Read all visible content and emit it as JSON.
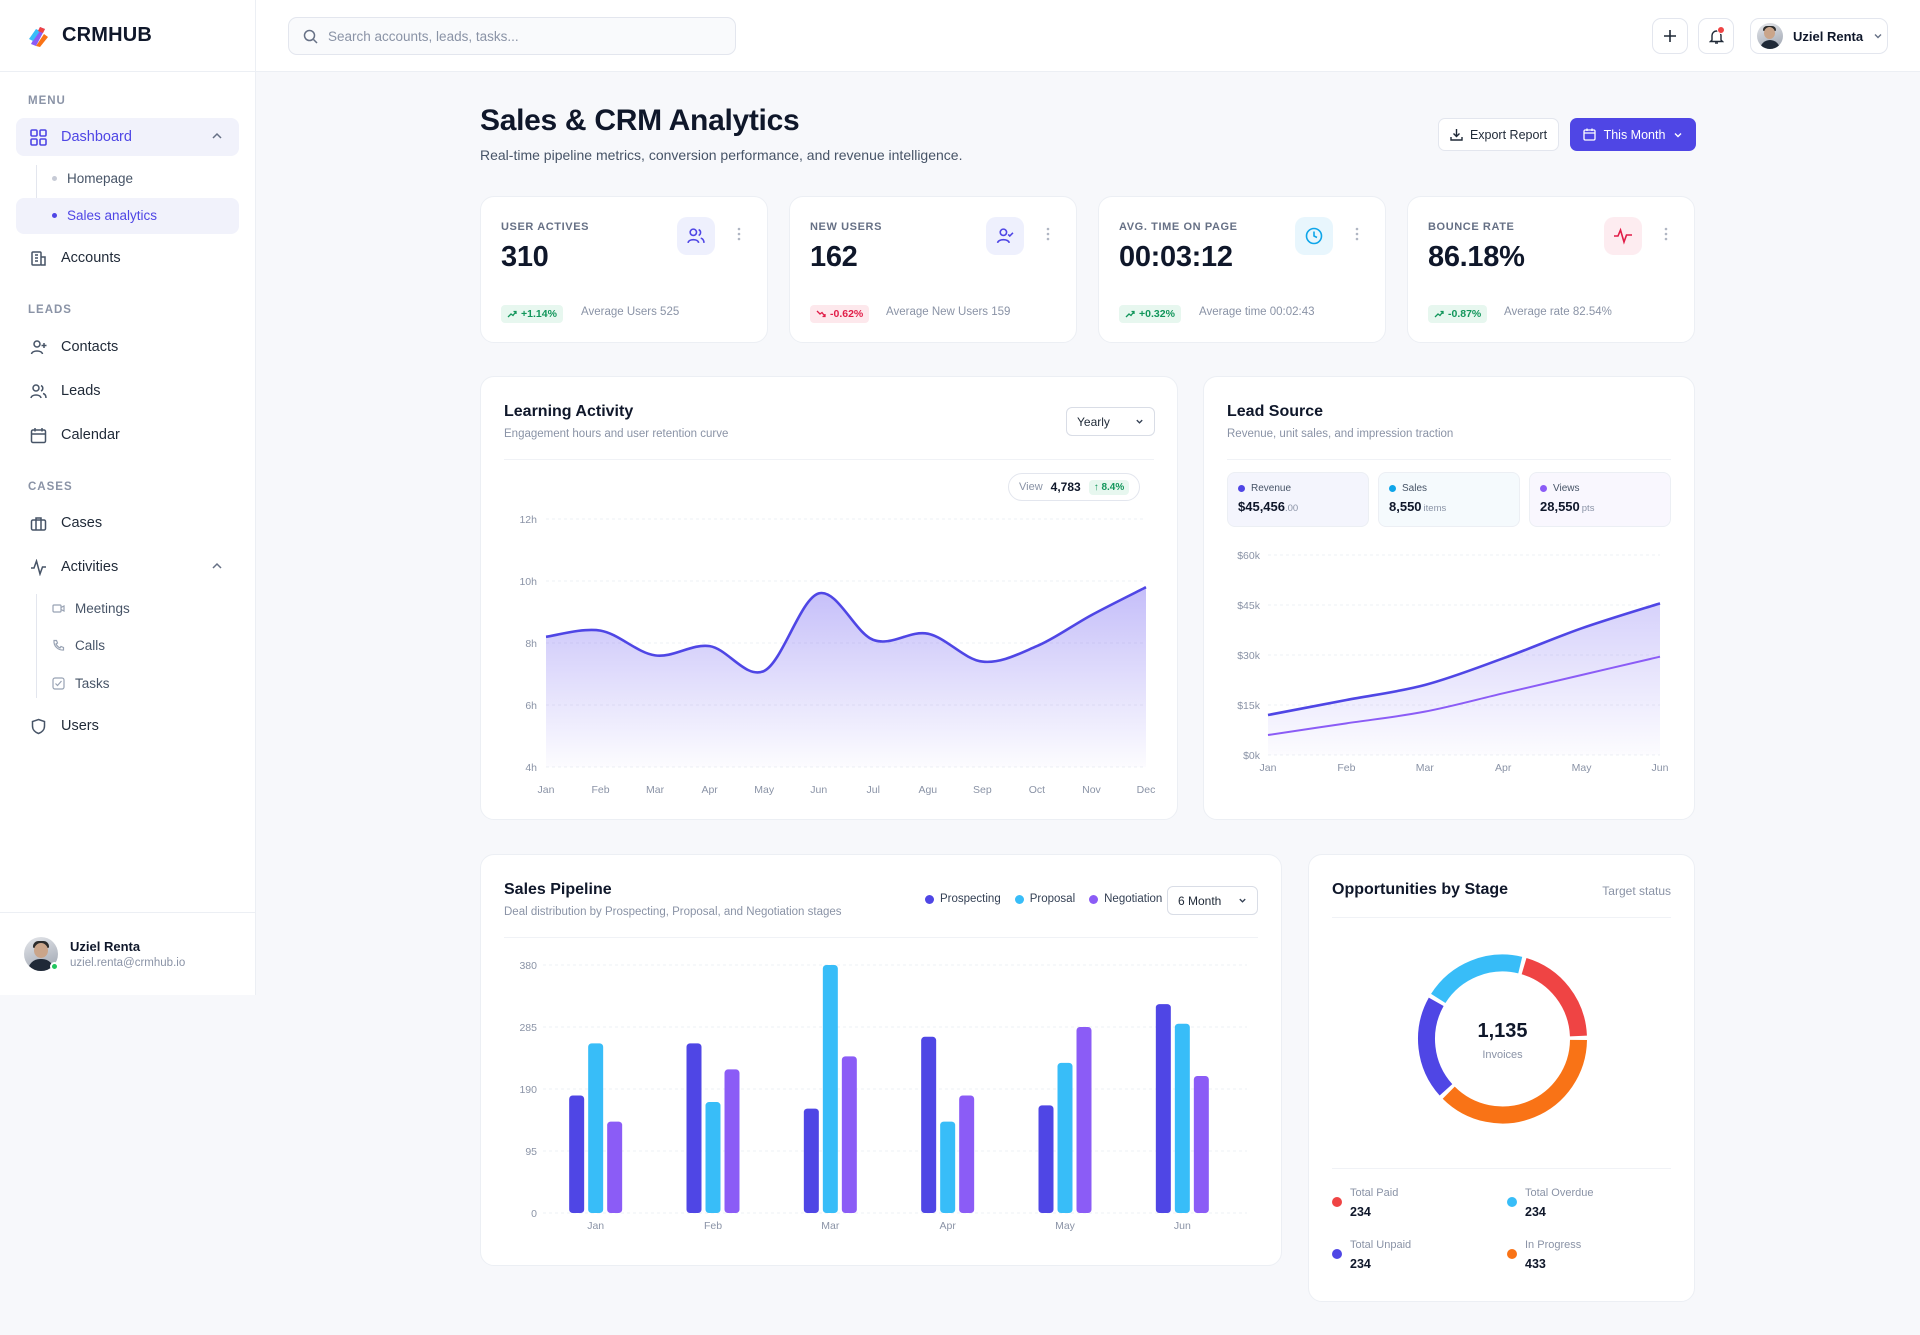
{
  "brand": {
    "name": "CRMHUB"
  },
  "sidebar": {
    "sections": {
      "menu": "MENU",
      "leads": "LEADS",
      "cases": "CASES"
    },
    "items": {
      "dashboard": "Dashboard",
      "homepage": "Homepage",
      "sales_analytics": "Sales analytics",
      "accounts": "Accounts",
      "contacts": "Contacts",
      "leads": "Leads",
      "calendar": "Calendar",
      "cases": "Cases",
      "activities": "Activities",
      "meetings": "Meetings",
      "calls": "Calls",
      "tasks": "Tasks",
      "users": "Users"
    },
    "user": {
      "name": "Uziel Renta",
      "email": "uziel.renta@crmhub.io"
    }
  },
  "topbar": {
    "search_placeholder": "Search accounts, leads, tasks...",
    "user_name": "Uziel Renta"
  },
  "header": {
    "title": "Sales & CRM Analytics",
    "subtitle": "Real-time pipeline metrics, conversion performance, and revenue intelligence.",
    "export_label": "Export Report",
    "period_label": "This Month"
  },
  "kpis": [
    {
      "label": "USER ACTIVES",
      "value": "310",
      "change": "+1.14%",
      "trend": "up",
      "note": "Average Users 525",
      "color": "#4f46e5"
    },
    {
      "label": "NEW USERS",
      "value": "162",
      "change": "-0.62%",
      "trend": "down",
      "note": "Average New Users 159",
      "color": "#4f46e5"
    },
    {
      "label": "AVG. TIME ON PAGE",
      "value": "00:03:12",
      "change": "+0.32%",
      "trend": "up",
      "note": "Average time 00:02:43",
      "color": "#0ea5e9"
    },
    {
      "label": "BOUNCE RATE",
      "value": "86.18%",
      "change": "-0.87%",
      "trend": "up",
      "note": "Average rate 82.54%",
      "color": "#e11d48"
    }
  ],
  "learning": {
    "title": "Learning Activity",
    "subtitle": "Engagement hours and user retention curve",
    "range_label": "Yearly",
    "tooltip_label": "View",
    "tooltip_value": "4,783",
    "tooltip_change": "↑ 8.4%"
  },
  "leadsource": {
    "title": "Lead Source",
    "subtitle": "Revenue, unit sales, and impression traction",
    "metrics": [
      {
        "label": "Revenue",
        "value": "$45,456",
        "unit": ".00",
        "color": "#4f46e5"
      },
      {
        "label": "Sales",
        "value": "8,550",
        "unit": "items",
        "color": "#0ea5e9"
      },
      {
        "label": "Views",
        "value": "28,550",
        "unit": "pts",
        "color": "#8b5cf6"
      }
    ]
  },
  "pipeline": {
    "title": "Sales Pipeline",
    "subtitle": "Deal distribution by Prospecting, Proposal, and Negotiation stages",
    "range_label": "6 Month"
  },
  "opportunities": {
    "title": "Opportunities by Stage",
    "link": "Target status",
    "center_value": "1,135",
    "center_label": "Invoices",
    "stages": [
      {
        "label": "Total Paid",
        "value": "234",
        "color": "#ef4444"
      },
      {
        "label": "Total Overdue",
        "value": "234",
        "color": "#38bdf8"
      },
      {
        "label": "Total Unpaid",
        "value": "234",
        "color": "#4f46e5"
      },
      {
        "label": "In Progress",
        "value": "433",
        "color": "#f97316"
      }
    ]
  },
  "colors": {
    "accent": "#4f46e5",
    "sky": "#38bdf8",
    "violet": "#8b5cf6",
    "orange": "#f97316",
    "red": "#ef4444",
    "green": "#12965b"
  },
  "chart_data": [
    {
      "type": "area",
      "title": "Learning Activity",
      "categories": [
        "Jan",
        "Feb",
        "Mar",
        "Apr",
        "May",
        "Jun",
        "Jul",
        "Agu",
        "Sep",
        "Oct",
        "Nov",
        "Dec"
      ],
      "y_ticks": [
        "4h",
        "6h",
        "8h",
        "10h",
        "12h"
      ],
      "ylim": [
        4,
        12
      ],
      "series": [
        {
          "values": [
            8.2,
            8.4,
            7.6,
            7.9,
            7.1,
            9.6,
            8.1,
            8.3,
            7.4,
            7.9,
            8.9,
            9.8
          ]
        }
      ],
      "grid": true
    },
    {
      "type": "area",
      "title": "Lead Source",
      "categories": [
        "Jan",
        "Feb",
        "Mar",
        "Apr",
        "May",
        "Jun"
      ],
      "y_ticks": [
        "$0k",
        "$15k",
        "$30k",
        "$45k",
        "$60k"
      ],
      "ylim": [
        0,
        60000
      ],
      "series": [
        {
          "values": [
            12000,
            16500,
            21000,
            29000,
            38000,
            45500
          ]
        },
        {
          "values": [
            6000,
            9500,
            13000,
            18500,
            24000,
            29500
          ]
        }
      ],
      "grid": true
    },
    {
      "type": "bar",
      "title": "Sales Pipeline",
      "categories": [
        "Jan",
        "Feb",
        "Mar",
        "Apr",
        "May",
        "Jun"
      ],
      "y_ticks": [
        "0",
        "95",
        "190",
        "285",
        "380"
      ],
      "ylim": [
        0,
        380
      ],
      "series": [
        {
          "name": "Prospecting",
          "values": [
            180,
            260,
            160,
            270,
            165,
            320
          ]
        },
        {
          "name": "Proposal",
          "values": [
            260,
            170,
            380,
            140,
            230,
            290
          ]
        },
        {
          "name": "Negotiation",
          "values": [
            140,
            220,
            240,
            180,
            285,
            210
          ]
        }
      ],
      "grid": true
    },
    {
      "type": "pie",
      "title": "Opportunities by Stage",
      "labels": [
        "Total Paid",
        "In Progress",
        "Total Unpaid",
        "Total Overdue"
      ],
      "values": [
        234,
        433,
        234,
        234
      ]
    }
  ]
}
